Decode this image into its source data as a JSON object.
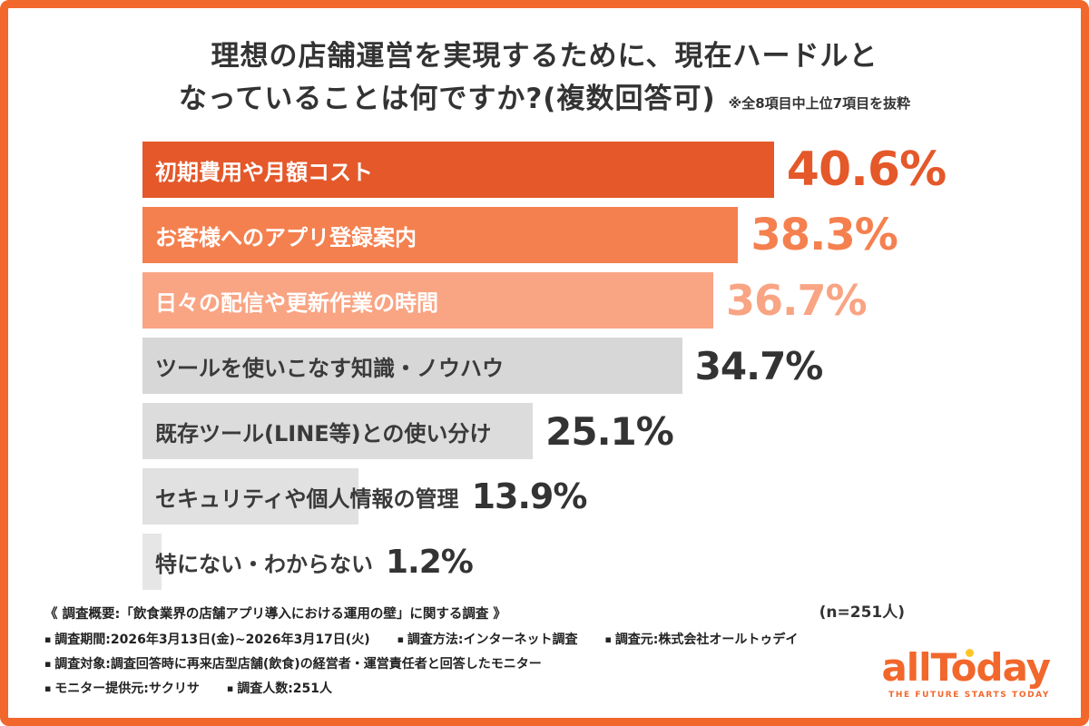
{
  "frame": {
    "border_color": "#f2672c"
  },
  "title": {
    "line1": "理想の店舗運営を実現するために、現在ハードルと",
    "line2": "なっていることは何ですか?(複数回答可)",
    "note": "※全8項目中上位7項目を抜粋"
  },
  "chart_data": {
    "type": "bar",
    "orientation": "horizontal",
    "unit": "%",
    "xlim": [
      0,
      51.7
    ],
    "n_label": "(n=251人)",
    "sample_size": 251,
    "categories": [
      "初期費用や月額コスト",
      "お客様へのアプリ登録案内",
      "日々の配信や更新作業の時間",
      "ツールを使いこなす知識・ノウハウ",
      "既存ツール(LINE等)との使い分け",
      "セキュリティや個人情報の管理",
      "特にない・わからない"
    ],
    "values": [
      40.6,
      38.3,
      36.7,
      34.7,
      25.1,
      13.9,
      1.2
    ],
    "rows": [
      {
        "label": "初期費用や月額コスト",
        "value": 40.6,
        "display": "40.6%",
        "bar_color": "#e4582a",
        "label_color": "#ffffff",
        "pct_color": "#e4582a",
        "layout": "inside"
      },
      {
        "label": "お客様へのアプリ登録案内",
        "value": 38.3,
        "display": "38.3%",
        "bar_color": "#f5804f",
        "label_color": "#ffffff",
        "pct_color": "#f5804f",
        "layout": "inside"
      },
      {
        "label": "日々の配信や更新作業の時間",
        "value": 36.7,
        "display": "36.7%",
        "bar_color": "#f9a483",
        "label_color": "#ffffff",
        "pct_color": "#f9a483",
        "layout": "inside"
      },
      {
        "label": "ツールを使いこなす知識・ノウハウ",
        "value": 34.7,
        "display": "34.7%",
        "bar_color": "#d7d7d7",
        "label_color": "#3a3a3a",
        "pct_color": "#333333",
        "layout": "inside"
      },
      {
        "label": "既存ツール(LINE等)との使い分け",
        "value": 25.1,
        "display": "25.1%",
        "bar_color": "#dcdcdc",
        "label_color": "#3a3a3a",
        "pct_color": "#333333",
        "layout": "inside"
      },
      {
        "label": "セキュリティや個人情報の管理",
        "value": 13.9,
        "display": "13.9%",
        "bar_color": "#e1e1e1",
        "label_color": "#3a3a3a",
        "pct_color": "#333333",
        "layout": "overflow"
      },
      {
        "label": "特にない・わからない",
        "value": 1.2,
        "display": "1.2%",
        "bar_color": "#e6e6e6",
        "label_color": "#3a3a3a",
        "pct_color": "#333333",
        "layout": "overflow"
      }
    ]
  },
  "footer": {
    "heading": "《 調査概要:「飲食業界の店舗アプリ導入における運用の壁」に関する調査 》",
    "lines": [
      [
        "調査期間:2026年3月13日(金)~2026年3月17日(火)",
        "調査方法:インターネット調査",
        "調査元:株式会社オールトゥデイ"
      ],
      [
        "調査対象:調査回答時に再来店型店舗(飲食)の経営者・運営責任者と回答したモニター"
      ],
      [
        "モニター提供元:サクリサ",
        "調査人数:251人"
      ]
    ]
  },
  "logo": {
    "text": "allToday",
    "tagline": "THE FUTURE STARTS TODAY",
    "color": "#f2672c",
    "accent_color": "#ffc527"
  }
}
